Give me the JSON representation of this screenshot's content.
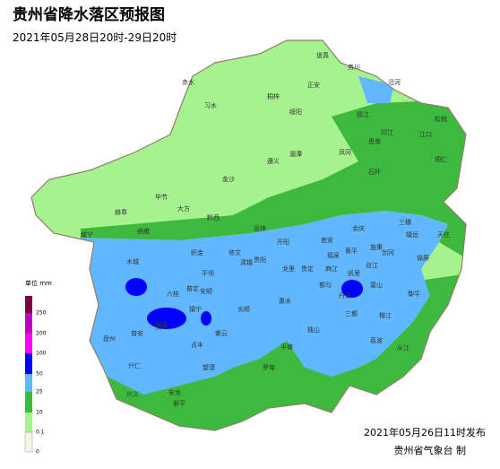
{
  "header": {
    "title": "贵州省降水落区预报图",
    "subtitle": "2021年05月28日20时-29日20时"
  },
  "legend": {
    "unit": "单位 mm",
    "labels": [
      "250",
      "200",
      "100",
      "50",
      "25",
      "10",
      "0.1",
      "0"
    ]
  },
  "footer": {
    "issued": "2021年05月26日11时发布",
    "agency": "贵州省气象台 制"
  },
  "places": [
    "道真",
    "务川",
    "正安",
    "沿河",
    "赤水",
    "习水",
    "桐梓",
    "绥阳",
    "德江",
    "印江",
    "松桃",
    "湄潭",
    "思南",
    "江口",
    "遵义",
    "凤冈",
    "石阡",
    "铜仁",
    "金沙",
    "毕节",
    "赫章",
    "大方",
    "黔西",
    "威宁",
    "纳雍",
    "织金",
    "修文",
    "开阳",
    "息烽",
    "瓮安",
    "余庆",
    "施秉",
    "镇远",
    "三穗",
    "天柱",
    "锦屏",
    "黎平",
    "榕江",
    "从江",
    "雷山",
    "台江",
    "剑河",
    "黄平",
    "凯里",
    "麻江",
    "丹寨",
    "都匀",
    "三都",
    "独山",
    "荔波",
    "平塘",
    "罗甸",
    "望谟",
    "册亨",
    "安龙",
    "兴义",
    "兴仁",
    "贞丰",
    "普安",
    "盘州",
    "六枝",
    "水城",
    "关岭",
    "镇宁",
    "紫云",
    "长顺",
    "惠水",
    "龙里",
    "贵定",
    "福泉",
    "平坝",
    "清镇",
    "贵阳",
    "普定",
    "安顺",
    "晴隆"
  ]
}
